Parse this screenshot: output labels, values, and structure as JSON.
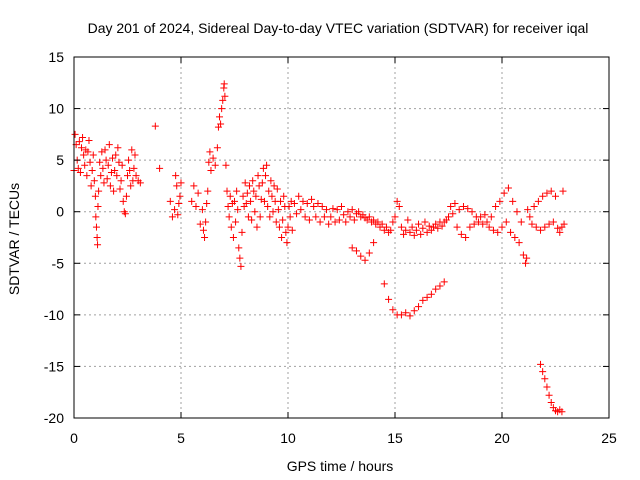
{
  "chart_data": {
    "type": "scatter",
    "title": "Day 201 of 2024, Sidereal Day-to-day VTEC variation (SDTVAR) for receiver iqal",
    "xlabel": "GPS time / hours",
    "ylabel": "SDTVAR / TECUs",
    "xlim": [
      0,
      25
    ],
    "ylim": [
      -20,
      15
    ],
    "xticks": [
      "0",
      "5",
      "10",
      "15",
      "20",
      "25"
    ],
    "yticks": [
      "15",
      "10",
      "5",
      "0",
      "-5",
      "-10",
      "-15",
      "-20"
    ],
    "grid": true,
    "marker": "+",
    "marker_color": "#ff0000",
    "series": [
      {
        "name": "SDTVAR",
        "points": [
          [
            0.0,
            4.0
          ],
          [
            0.05,
            7.5
          ],
          [
            0.1,
            6.5
          ],
          [
            0.15,
            5.0
          ],
          [
            0.2,
            4.2
          ],
          [
            0.25,
            6.8
          ],
          [
            0.3,
            3.8
          ],
          [
            0.35,
            6.2
          ],
          [
            0.4,
            7.2
          ],
          [
            0.45,
            5.5
          ],
          [
            0.5,
            4.5
          ],
          [
            0.55,
            6.0
          ],
          [
            0.6,
            3.5
          ],
          [
            0.65,
            5.8
          ],
          [
            0.7,
            6.9
          ],
          [
            0.75,
            4.8
          ],
          [
            0.8,
            2.5
          ],
          [
            0.85,
            4.0
          ],
          [
            0.9,
            5.5
          ],
          [
            0.95,
            3.0
          ],
          [
            1.0,
            1.5
          ],
          [
            1.02,
            -0.5
          ],
          [
            1.05,
            -1.5
          ],
          [
            1.08,
            -2.5
          ],
          [
            1.1,
            -3.2
          ],
          [
            1.12,
            0.5
          ],
          [
            1.15,
            2.0
          ],
          [
            1.2,
            4.8
          ],
          [
            1.25,
            3.5
          ],
          [
            1.3,
            5.8
          ],
          [
            1.35,
            4.2
          ],
          [
            1.4,
            2.8
          ],
          [
            1.45,
            6.0
          ],
          [
            1.5,
            5.0
          ],
          [
            1.55,
            3.2
          ],
          [
            1.6,
            4.5
          ],
          [
            1.65,
            6.5
          ],
          [
            1.7,
            2.5
          ],
          [
            1.75,
            3.8
          ],
          [
            1.8,
            5.2
          ],
          [
            1.85,
            2.0
          ],
          [
            1.9,
            4.0
          ],
          [
            1.95,
            5.5
          ],
          [
            2.0,
            3.5
          ],
          [
            2.05,
            6.2
          ],
          [
            2.1,
            4.8
          ],
          [
            2.15,
            2.2
          ],
          [
            2.2,
            3.0
          ],
          [
            2.25,
            4.5
          ],
          [
            2.3,
            1.0
          ],
          [
            2.35,
            0.0
          ],
          [
            2.4,
            -0.2
          ],
          [
            2.45,
            1.5
          ],
          [
            2.5,
            3.5
          ],
          [
            2.55,
            5.0
          ],
          [
            2.6,
            4.0
          ],
          [
            2.65,
            2.5
          ],
          [
            2.7,
            6.0
          ],
          [
            2.75,
            3.0
          ],
          [
            2.8,
            4.2
          ],
          [
            2.85,
            5.5
          ],
          [
            2.9,
            3.5
          ],
          [
            3.0,
            3.0
          ],
          [
            3.1,
            2.8
          ],
          [
            3.8,
            8.3
          ],
          [
            4.0,
            4.2
          ],
          [
            4.5,
            1.0
          ],
          [
            4.6,
            -0.5
          ],
          [
            4.7,
            0.2
          ],
          [
            4.75,
            3.5
          ],
          [
            4.8,
            2.5
          ],
          [
            4.85,
            -0.3
          ],
          [
            4.9,
            0.8
          ],
          [
            4.95,
            1.5
          ],
          [
            5.0,
            2.8
          ],
          [
            5.5,
            1.0
          ],
          [
            5.6,
            2.5
          ],
          [
            5.7,
            0.5
          ],
          [
            5.8,
            1.8
          ],
          [
            5.9,
            -1.2
          ],
          [
            6.0,
            0.2
          ],
          [
            6.05,
            -1.8
          ],
          [
            6.1,
            -2.5
          ],
          [
            6.15,
            -1.0
          ],
          [
            6.2,
            0.8
          ],
          [
            6.25,
            2.0
          ],
          [
            6.3,
            4.8
          ],
          [
            6.35,
            5.8
          ],
          [
            6.4,
            4.0
          ],
          [
            6.5,
            5.2
          ],
          [
            6.6,
            4.5
          ],
          [
            6.7,
            6.2
          ],
          [
            6.75,
            8.2
          ],
          [
            6.8,
            9.2
          ],
          [
            6.85,
            8.5
          ],
          [
            6.9,
            10.0
          ],
          [
            6.95,
            10.8
          ],
          [
            7.0,
            12.0
          ],
          [
            7.02,
            12.4
          ],
          [
            7.05,
            11.2
          ],
          [
            7.1,
            4.5
          ],
          [
            7.15,
            2.0
          ],
          [
            7.2,
            0.5
          ],
          [
            7.25,
            -0.5
          ],
          [
            7.3,
            1.5
          ],
          [
            7.35,
            -1.5
          ],
          [
            7.4,
            0.8
          ],
          [
            7.45,
            -2.5
          ],
          [
            7.5,
            1.0
          ],
          [
            7.55,
            -1.0
          ],
          [
            7.6,
            2.0
          ],
          [
            7.65,
            0.2
          ],
          [
            7.7,
            -3.5
          ],
          [
            7.75,
            -4.5
          ],
          [
            7.8,
            -5.3
          ],
          [
            7.85,
            -2.0
          ],
          [
            7.9,
            1.5
          ],
          [
            7.95,
            0.5
          ],
          [
            8.0,
            2.8
          ],
          [
            8.05,
            0.8
          ],
          [
            8.1,
            1.8
          ],
          [
            8.15,
            -0.5
          ],
          [
            8.2,
            2.5
          ],
          [
            8.25,
            1.0
          ],
          [
            8.3,
            -0.8
          ],
          [
            8.35,
            3.0
          ],
          [
            8.4,
            2.0
          ],
          [
            8.45,
            0.0
          ],
          [
            8.5,
            1.5
          ],
          [
            8.55,
            -1.5
          ],
          [
            8.6,
            3.5
          ],
          [
            8.65,
            2.5
          ],
          [
            8.7,
            -0.5
          ],
          [
            8.75,
            1.2
          ],
          [
            8.8,
            2.8
          ],
          [
            8.85,
            4.2
          ],
          [
            8.9,
            1.0
          ],
          [
            8.95,
            3.5
          ],
          [
            9.0,
            4.5
          ],
          [
            9.05,
            0.5
          ],
          [
            9.1,
            2.0
          ],
          [
            9.15,
            -0.5
          ],
          [
            9.2,
            3.0
          ],
          [
            9.25,
            1.5
          ],
          [
            9.3,
            0.0
          ],
          [
            9.35,
            2.5
          ],
          [
            9.4,
            1.0
          ],
          [
            9.45,
            -1.0
          ],
          [
            9.5,
            2.2
          ],
          [
            9.55,
            0.2
          ],
          [
            9.6,
            -1.5
          ],
          [
            9.65,
            1.0
          ],
          [
            9.7,
            -2.5
          ],
          [
            9.75,
            -0.8
          ],
          [
            9.8,
            1.5
          ],
          [
            9.85,
            0.5
          ],
          [
            9.9,
            -2.0
          ],
          [
            9.95,
            -3.0
          ],
          [
            10.0,
            -1.5
          ],
          [
            10.05,
            0.5
          ],
          [
            10.1,
            -0.5
          ],
          [
            10.15,
            1.0
          ],
          [
            10.2,
            -1.8
          ],
          [
            10.3,
            0.8
          ],
          [
            10.4,
            -0.2
          ],
          [
            10.5,
            1.5
          ],
          [
            10.6,
            0.2
          ],
          [
            10.7,
            1.0
          ],
          [
            10.8,
            -0.5
          ],
          [
            10.9,
            0.8
          ],
          [
            11.0,
            -0.8
          ],
          [
            11.1,
            1.2
          ],
          [
            11.2,
            0.5
          ],
          [
            11.3,
            -0.5
          ],
          [
            11.4,
            0.8
          ],
          [
            11.5,
            -1.0
          ],
          [
            11.6,
            0.5
          ],
          [
            11.7,
            -0.5
          ],
          [
            11.8,
            0.2
          ],
          [
            11.9,
            -1.2
          ],
          [
            12.0,
            -0.5
          ],
          [
            12.1,
            0.3
          ],
          [
            12.2,
            -1.0
          ],
          [
            12.3,
            0.2
          ],
          [
            12.4,
            -0.8
          ],
          [
            12.5,
            0.5
          ],
          [
            12.6,
            -0.3
          ],
          [
            12.7,
            -1.0
          ],
          [
            12.8,
            0.0
          ],
          [
            12.9,
            -0.5
          ],
          [
            13.0,
            0.2
          ],
          [
            13.1,
            -0.8
          ],
          [
            13.2,
            -0.2
          ],
          [
            13.3,
            0.0
          ],
          [
            13.4,
            -0.5
          ],
          [
            13.5,
            -0.3
          ],
          [
            13.6,
            -0.6
          ],
          [
            13.7,
            -0.8
          ],
          [
            13.8,
            -0.5
          ],
          [
            13.9,
            -1.0
          ],
          [
            14.0,
            -0.8
          ],
          [
            14.1,
            -1.2
          ],
          [
            14.2,
            -1.0
          ],
          [
            14.3,
            -1.5
          ],
          [
            14.4,
            -1.2
          ],
          [
            14.5,
            -1.8
          ],
          [
            14.6,
            -1.5
          ],
          [
            14.7,
            -2.0
          ],
          [
            14.8,
            -1.8
          ],
          [
            14.9,
            -1.0
          ],
          [
            15.0,
            -0.5
          ],
          [
            15.1,
            1.0
          ],
          [
            15.2,
            0.5
          ],
          [
            15.3,
            -1.5
          ],
          [
            15.4,
            -2.2
          ],
          [
            15.5,
            -1.8
          ],
          [
            15.6,
            -0.8
          ],
          [
            15.7,
            -2.0
          ],
          [
            15.8,
            -1.5
          ],
          [
            15.9,
            -2.3
          ],
          [
            16.0,
            -1.8
          ],
          [
            16.1,
            -1.2
          ],
          [
            16.2,
            -2.2
          ],
          [
            16.3,
            -1.6
          ],
          [
            16.4,
            -1.0
          ],
          [
            16.5,
            -2.0
          ],
          [
            16.6,
            -1.4
          ],
          [
            16.7,
            -1.8
          ],
          [
            16.8,
            -1.5
          ],
          [
            16.9,
            -1.2
          ],
          [
            17.0,
            -1.6
          ],
          [
            17.1,
            -1.0
          ],
          [
            17.2,
            -1.4
          ],
          [
            17.3,
            -1.0
          ],
          [
            17.4,
            -0.8
          ],
          [
            17.5,
            -0.5
          ],
          [
            17.6,
            0.5
          ],
          [
            17.7,
            -0.2
          ],
          [
            17.8,
            0.8
          ],
          [
            17.9,
            -1.5
          ],
          [
            18.0,
            0.2
          ],
          [
            18.1,
            -2.2
          ],
          [
            18.2,
            0.5
          ],
          [
            18.3,
            -2.5
          ],
          [
            18.4,
            0.3
          ],
          [
            18.5,
            -1.5
          ],
          [
            18.6,
            0.0
          ],
          [
            18.7,
            -1.2
          ],
          [
            18.8,
            -0.5
          ],
          [
            18.9,
            -1.0
          ],
          [
            19.0,
            -0.5
          ],
          [
            19.1,
            -1.2
          ],
          [
            19.2,
            -0.3
          ],
          [
            19.3,
            -1.0
          ],
          [
            19.4,
            -1.5
          ],
          [
            19.5,
            -0.5
          ],
          [
            19.6,
            -1.8
          ],
          [
            19.7,
            0.5
          ],
          [
            19.8,
            -2.0
          ],
          [
            19.9,
            1.0
          ],
          [
            20.0,
            -1.5
          ],
          [
            20.1,
            1.8
          ],
          [
            20.2,
            -1.0
          ],
          [
            20.3,
            2.3
          ],
          [
            20.4,
            -2.0
          ],
          [
            20.5,
            1.0
          ],
          [
            20.6,
            -2.5
          ],
          [
            20.7,
            0.0
          ],
          [
            20.8,
            -3.0
          ],
          [
            20.9,
            -1.0
          ],
          [
            21.0,
            -4.2
          ],
          [
            21.1,
            -5.0
          ],
          [
            21.15,
            -4.5
          ],
          [
            21.2,
            0.2
          ],
          [
            21.3,
            -0.5
          ],
          [
            21.4,
            -1.2
          ],
          [
            21.5,
            0.5
          ],
          [
            21.6,
            -1.5
          ],
          [
            21.7,
            1.0
          ],
          [
            21.8,
            -1.8
          ],
          [
            21.9,
            1.5
          ],
          [
            22.0,
            -1.5
          ],
          [
            22.1,
            1.8
          ],
          [
            22.2,
            -1.2
          ],
          [
            22.3,
            2.0
          ],
          [
            22.4,
            -1.0
          ],
          [
            22.5,
            1.5
          ],
          [
            22.6,
            -1.6
          ],
          [
            22.7,
            -2.0
          ],
          [
            22.8,
            -1.5
          ],
          [
            22.85,
            2.0
          ],
          [
            22.9,
            -1.2
          ],
          [
            13.0,
            -3.5
          ],
          [
            13.2,
            -3.8
          ],
          [
            13.4,
            -4.3
          ],
          [
            13.6,
            -4.7
          ],
          [
            13.8,
            -4.0
          ],
          [
            14.0,
            -3.0
          ],
          [
            14.5,
            -7.0
          ],
          [
            14.7,
            -8.5
          ],
          [
            14.9,
            -9.5
          ],
          [
            15.1,
            -10.0
          ],
          [
            15.3,
            -10.0
          ],
          [
            15.5,
            -9.8
          ],
          [
            15.7,
            -10.1
          ],
          [
            15.9,
            -9.6
          ],
          [
            16.1,
            -9.2
          ],
          [
            16.3,
            -8.6
          ],
          [
            16.5,
            -8.3
          ],
          [
            16.7,
            -8.0
          ],
          [
            16.9,
            -7.5
          ],
          [
            17.1,
            -7.2
          ],
          [
            17.3,
            -6.8
          ],
          [
            21.8,
            -14.8
          ],
          [
            21.9,
            -15.5
          ],
          [
            22.0,
            -16.2
          ],
          [
            22.1,
            -17.0
          ],
          [
            22.2,
            -17.8
          ],
          [
            22.3,
            -18.5
          ],
          [
            22.4,
            -19.0
          ],
          [
            22.5,
            -19.3
          ],
          [
            22.6,
            -19.4
          ],
          [
            22.7,
            -19.2
          ],
          [
            22.8,
            -19.4
          ]
        ]
      }
    ]
  }
}
